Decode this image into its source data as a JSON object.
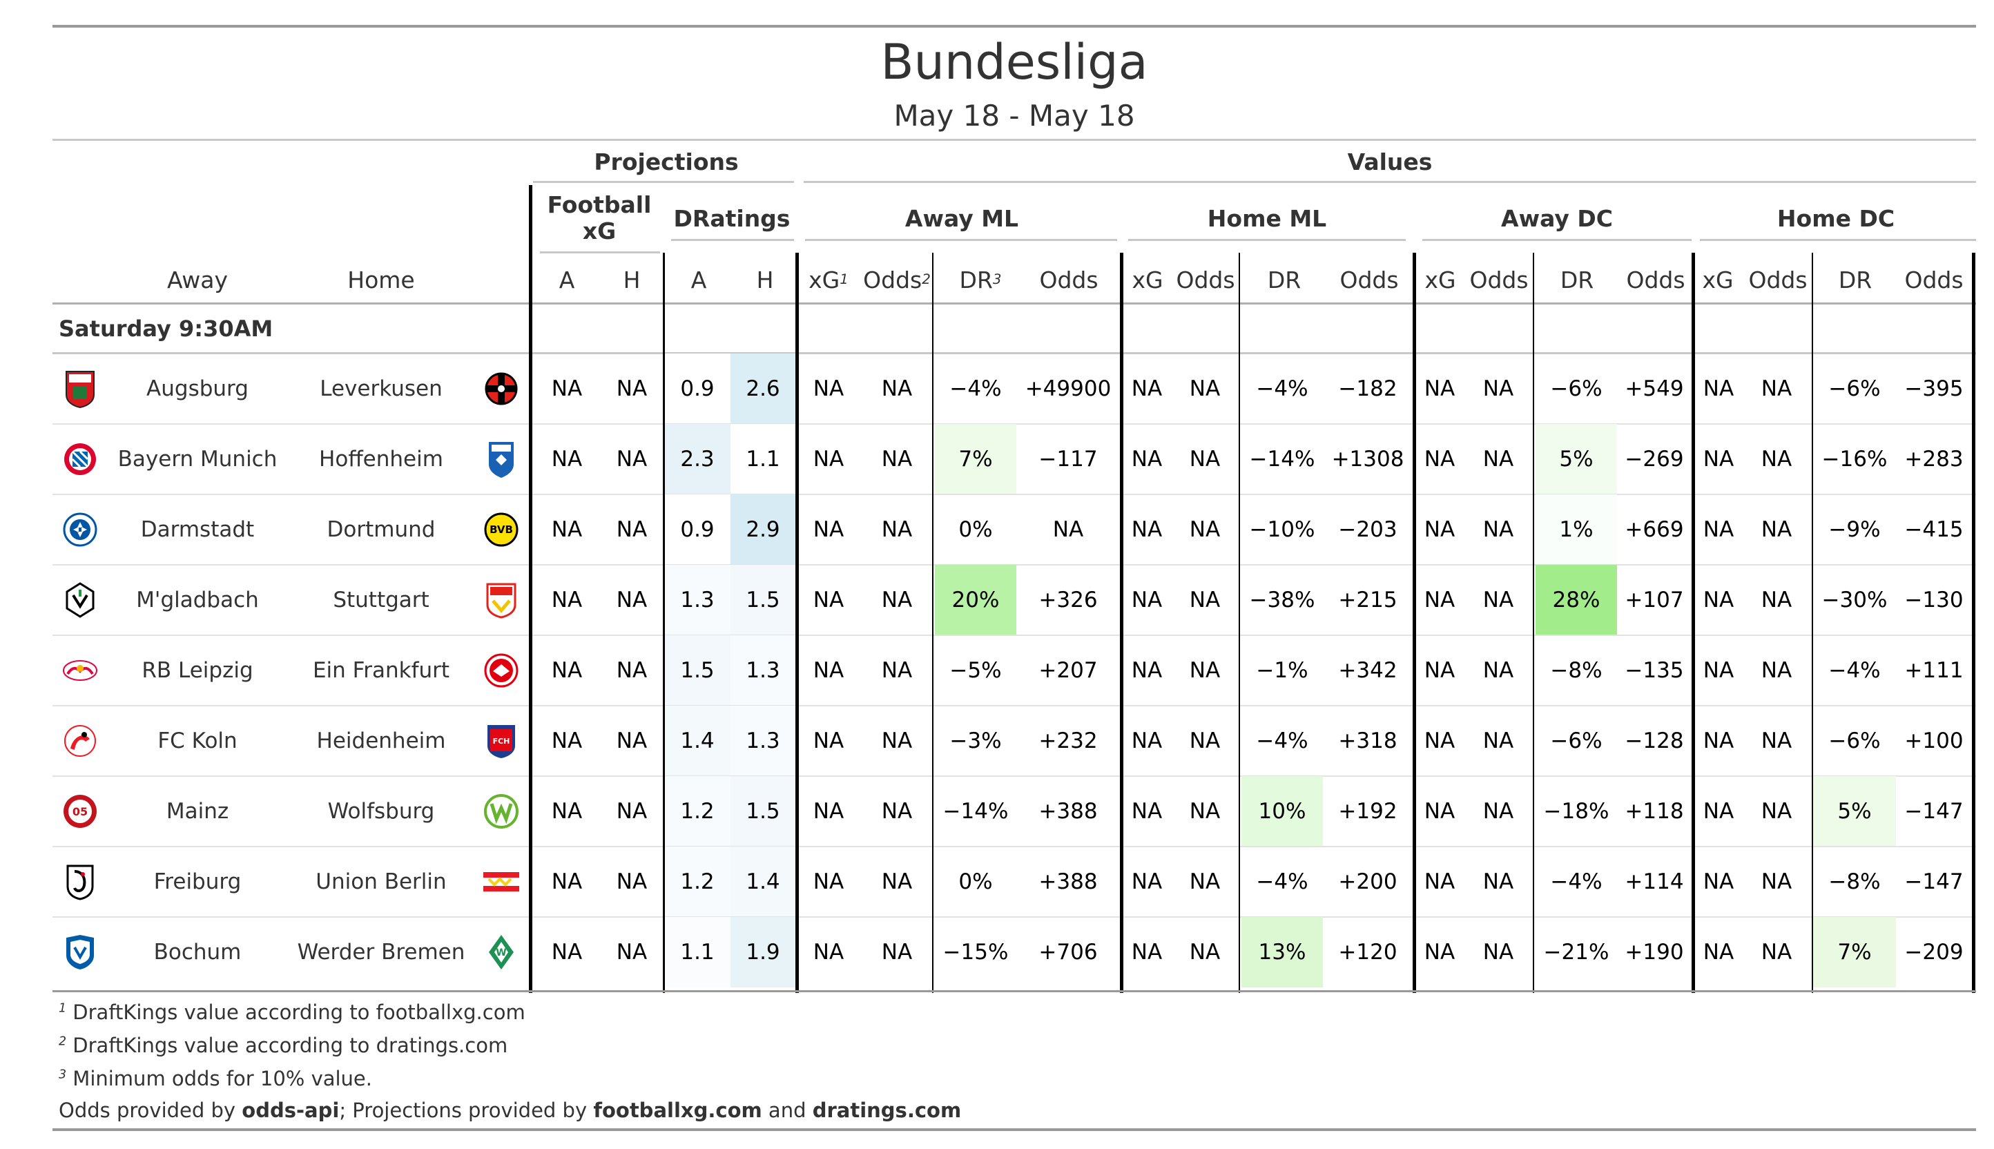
{
  "title": "Bundesliga",
  "subtitle": "May 18 - May 18",
  "header": {
    "projections": "Projections",
    "values": "Values",
    "footballxg_line1": "Football",
    "footballxg_line2": "xG",
    "dratings": "DRatings",
    "away_ml": "Away ML",
    "home_ml": "Home ML",
    "away_dc": "Away DC",
    "home_dc": "Home DC",
    "away": "Away",
    "home": "Home",
    "a": "A",
    "h": "H",
    "xg": "xG",
    "odds": "Odds",
    "dr": "DR",
    "sup1": "1",
    "sup2": "2",
    "sup3": "3"
  },
  "group_label": "Saturday 9:30AM",
  "colors": {
    "projection_max": "#dceef5",
    "value_strong": "#b2f0a0",
    "value_light": "#e8fbe2",
    "value_faint": "#f4fdf0",
    "line_gray": "#b0b0b0",
    "divider_black": "#000000"
  },
  "rows": [
    {
      "away": "Augsburg",
      "home": "Leverkusen",
      "away_logo": "augsburg-logo-icon",
      "home_logo": "leverkusen-logo-icon",
      "fxg_a": "NA",
      "fxg_h": "NA",
      "dr_a": "0.9",
      "dr_h": "2.6",
      "aml": [
        "NA",
        "NA",
        "−4%",
        "+49900"
      ],
      "hml": [
        "NA",
        "NA",
        "−4%",
        "−182"
      ],
      "adc": [
        "NA",
        "NA",
        "−6%",
        "+549"
      ],
      "hdc": [
        "NA",
        "NA",
        "−6%",
        "−395"
      ],
      "shade_dr_a": "#ffffff",
      "shade_dr_h": "#dceef5",
      "shade_aml": "",
      "shade_hml": "",
      "shade_adc": "",
      "shade_hdc": ""
    },
    {
      "away": "Bayern Munich",
      "home": "Hoffenheim",
      "away_logo": "bayern-logo-icon",
      "home_logo": "hoffenheim-logo-icon",
      "fxg_a": "NA",
      "fxg_h": "NA",
      "dr_a": "2.3",
      "dr_h": "1.1",
      "aml": [
        "NA",
        "NA",
        "7%",
        "−117"
      ],
      "hml": [
        "NA",
        "NA",
        "−14%",
        "+1308"
      ],
      "adc": [
        "NA",
        "NA",
        "5%",
        "−269"
      ],
      "hdc": [
        "NA",
        "NA",
        "−16%",
        "+283"
      ],
      "shade_dr_a": "#e6f2f8",
      "shade_dr_h": "#ffffff",
      "shade_aml": "#eefbe8",
      "shade_hml": "",
      "shade_adc": "#f2fcee",
      "shade_hdc": ""
    },
    {
      "away": "Darmstadt",
      "home": "Dortmund",
      "away_logo": "darmstadt-logo-icon",
      "home_logo": "dortmund-logo-icon",
      "fxg_a": "NA",
      "fxg_h": "NA",
      "dr_a": "0.9",
      "dr_h": "2.9",
      "aml": [
        "NA",
        "NA",
        "0%",
        "NA"
      ],
      "hml": [
        "NA",
        "NA",
        "−10%",
        "−203"
      ],
      "adc": [
        "NA",
        "NA",
        "1%",
        "+669"
      ],
      "hdc": [
        "NA",
        "NA",
        "−9%",
        "−415"
      ],
      "shade_dr_a": "#ffffff",
      "shade_dr_h": "#d6ebf3",
      "shade_aml": "",
      "shade_hml": "",
      "shade_adc": "#fafefa",
      "shade_hdc": ""
    },
    {
      "away": "M'gladbach",
      "home": "Stuttgart",
      "away_logo": "gladbach-logo-icon",
      "home_logo": "stuttgart-logo-icon",
      "fxg_a": "NA",
      "fxg_h": "NA",
      "dr_a": "1.3",
      "dr_h": "1.5",
      "aml": [
        "NA",
        "NA",
        "20%",
        "+326"
      ],
      "hml": [
        "NA",
        "NA",
        "−38%",
        "+215"
      ],
      "adc": [
        "NA",
        "NA",
        "28%",
        "+107"
      ],
      "hdc": [
        "NA",
        "NA",
        "−30%",
        "−130"
      ],
      "shade_dr_a": "#f8fbfd",
      "shade_dr_h": "#f2f8fb",
      "shade_aml": "#b8f2a6",
      "shade_hml": "",
      "shade_adc": "#a2ec8c",
      "shade_hdc": ""
    },
    {
      "away": "RB Leipzig",
      "home": "Ein Frankfurt",
      "away_logo": "leipzig-logo-icon",
      "home_logo": "frankfurt-logo-icon",
      "fxg_a": "NA",
      "fxg_h": "NA",
      "dr_a": "1.5",
      "dr_h": "1.3",
      "aml": [
        "NA",
        "NA",
        "−5%",
        "+207"
      ],
      "hml": [
        "NA",
        "NA",
        "−1%",
        "+342"
      ],
      "adc": [
        "NA",
        "NA",
        "−8%",
        "−135"
      ],
      "hdc": [
        "NA",
        "NA",
        "−4%",
        "+111"
      ],
      "shade_dr_a": "#f2f8fb",
      "shade_dr_h": "#f8fbfd",
      "shade_aml": "",
      "shade_hml": "",
      "shade_adc": "",
      "shade_hdc": ""
    },
    {
      "away": "FC Koln",
      "home": "Heidenheim",
      "away_logo": "koln-logo-icon",
      "home_logo": "heidenheim-logo-icon",
      "fxg_a": "NA",
      "fxg_h": "NA",
      "dr_a": "1.4",
      "dr_h": "1.3",
      "aml": [
        "NA",
        "NA",
        "−3%",
        "+232"
      ],
      "hml": [
        "NA",
        "NA",
        "−4%",
        "+318"
      ],
      "adc": [
        "NA",
        "NA",
        "−6%",
        "−128"
      ],
      "hdc": [
        "NA",
        "NA",
        "−6%",
        "+100"
      ],
      "shade_dr_a": "#f4f9fc",
      "shade_dr_h": "#f8fbfd",
      "shade_aml": "",
      "shade_hml": "",
      "shade_adc": "",
      "shade_hdc": ""
    },
    {
      "away": "Mainz",
      "home": "Wolfsburg",
      "away_logo": "mainz-logo-icon",
      "home_logo": "wolfsburg-logo-icon",
      "fxg_a": "NA",
      "fxg_h": "NA",
      "dr_a": "1.2",
      "dr_h": "1.5",
      "aml": [
        "NA",
        "NA",
        "−14%",
        "+388"
      ],
      "hml": [
        "NA",
        "NA",
        "10%",
        "+192"
      ],
      "adc": [
        "NA",
        "NA",
        "−18%",
        "+118"
      ],
      "hdc": [
        "NA",
        "NA",
        "5%",
        "−147"
      ],
      "shade_dr_a": "#f8fbfd",
      "shade_dr_h": "#f2f8fb",
      "shade_aml": "",
      "shade_hml": "#e4fadc",
      "shade_adc": "",
      "shade_hdc": "#eefbe8"
    },
    {
      "away": "Freiburg",
      "home": "Union Berlin",
      "away_logo": "freiburg-logo-icon",
      "home_logo": "union-logo-icon",
      "fxg_a": "NA",
      "fxg_h": "NA",
      "dr_a": "1.2",
      "dr_h": "1.4",
      "aml": [
        "NA",
        "NA",
        "0%",
        "+388"
      ],
      "hml": [
        "NA",
        "NA",
        "−4%",
        "+200"
      ],
      "adc": [
        "NA",
        "NA",
        "−4%",
        "+114"
      ],
      "hdc": [
        "NA",
        "NA",
        "−8%",
        "−147"
      ],
      "shade_dr_a": "#f8fbfd",
      "shade_dr_h": "#f4f9fc",
      "shade_aml": "",
      "shade_hml": "",
      "shade_adc": "",
      "shade_hdc": ""
    },
    {
      "away": "Bochum",
      "home": "Werder Bremen",
      "away_logo": "bochum-logo-icon",
      "home_logo": "bremen-logo-icon",
      "fxg_a": "NA",
      "fxg_h": "NA",
      "dr_a": "1.1",
      "dr_h": "1.9",
      "aml": [
        "NA",
        "NA",
        "−15%",
        "+706"
      ],
      "hml": [
        "NA",
        "NA",
        "13%",
        "+120"
      ],
      "adc": [
        "NA",
        "NA",
        "−21%",
        "+190"
      ],
      "hdc": [
        "NA",
        "NA",
        "7%",
        "−209"
      ],
      "shade_dr_a": "#fafcfe",
      "shade_dr_h": "#e8f3f8",
      "shade_aml": "",
      "shade_hml": "#dcf8d2",
      "shade_adc": "",
      "shade_hdc": "#eafae2"
    }
  ],
  "footnotes": {
    "n1_mark": "1",
    "n1": "DraftKings value according to footballxg.com",
    "n2_mark": "2",
    "n2": "DraftKings value according to dratings.com",
    "n3_mark": "3",
    "n3": "Minimum odds for 10% value.",
    "credit_1": "Odds provided by ",
    "credit_2": "odds-api",
    "credit_3": "; Projections provided by ",
    "credit_4": "footballxg.com",
    "credit_5": " and ",
    "credit_6": "dratings.com"
  }
}
